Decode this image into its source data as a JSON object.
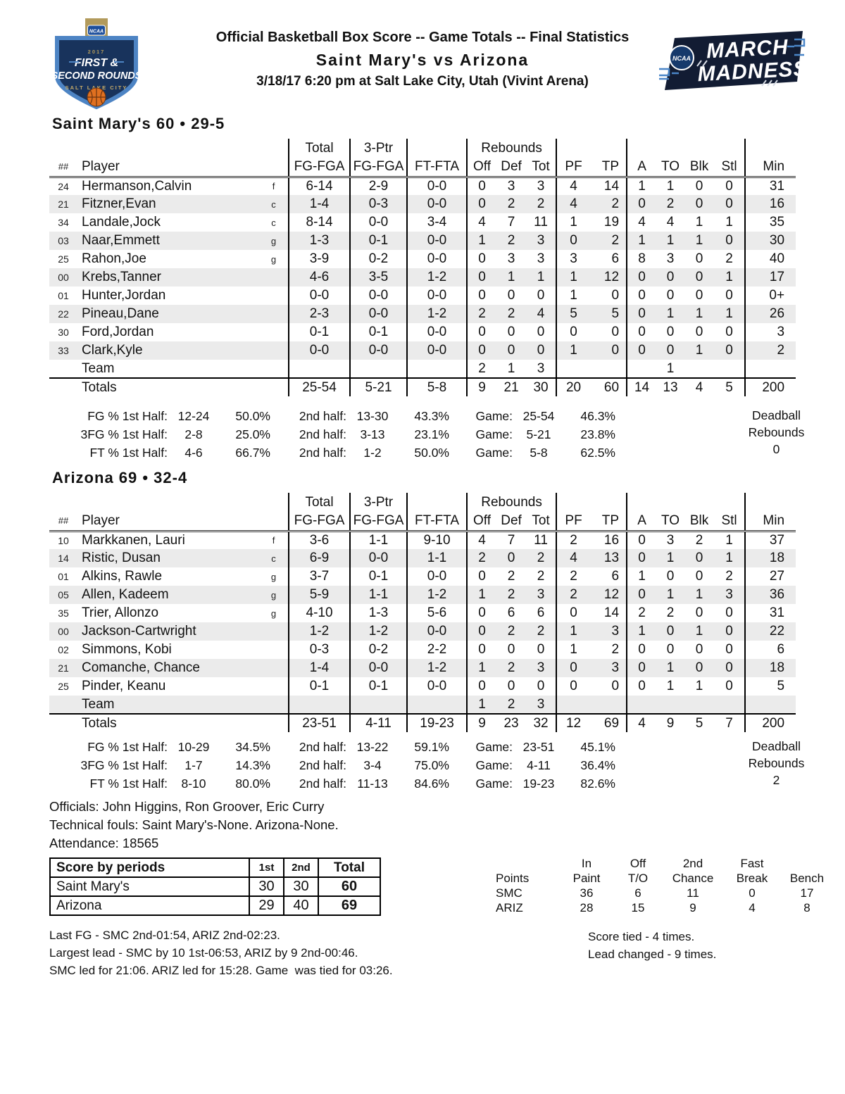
{
  "header": {
    "title_line1": "Official Basketball Box Score -- Game Totals -- Final Statistics",
    "title_line2": "Saint Mary's vs Arizona",
    "title_line3": "3/18/17 6:20 pm at Salt Lake City, Utah (Vivint Arena)",
    "left_logo": {
      "ncaa": "NCAA",
      "year": "2017",
      "line1": "FIRST &",
      "line2": "SECOND ROUNDS",
      "city": "SALT LAKE CITY",
      "colors": {
        "navy": "#18335c",
        "light_blue": "#4d84c4",
        "gold": "#b29a5b",
        "ball": "#e07020"
      }
    },
    "right_logo": {
      "ncaa": "NCAA",
      "line1": "MARCH",
      "line2": "MADNESS",
      "colors": {
        "bg": "#121c33",
        "bracket": "#4a86c8",
        "disk": "#16396b"
      }
    }
  },
  "table_head": {
    "group_total": "Total",
    "group_3ptr": "3-Ptr",
    "group_rebounds": "Rebounds",
    "cols": {
      "num": "##",
      "player": "Player",
      "fg": "FG-FGA",
      "fg3": "FG-FGA",
      "ft": "FT-FTA",
      "off": "Off",
      "def": "Def",
      "tot": "Tot",
      "pf": "PF",
      "tp": "TP",
      "a": "A",
      "to": "TO",
      "blk": "Blk",
      "stl": "Stl",
      "min": "Min"
    },
    "team_label": "Team",
    "totals_label": "Totals"
  },
  "teams": [
    {
      "title": "Saint Mary's 60 • 29-5",
      "players": [
        {
          "no": "24",
          "name": "Hermanson,Calvin",
          "pos": "f",
          "fg": "6-14",
          "fg3": "2-9",
          "ft": "0-0",
          "off": "0",
          "def": "3",
          "tot": "3",
          "pf": "4",
          "tp": "14",
          "a": "1",
          "to": "1",
          "blk": "0",
          "stl": "0",
          "min": "31"
        },
        {
          "no": "21",
          "name": "Fitzner,Evan",
          "pos": "c",
          "fg": "1-4",
          "fg3": "0-3",
          "ft": "0-0",
          "off": "0",
          "def": "2",
          "tot": "2",
          "pf": "4",
          "tp": "2",
          "a": "0",
          "to": "2",
          "blk": "0",
          "stl": "0",
          "min": "16"
        },
        {
          "no": "34",
          "name": "Landale,Jock",
          "pos": "c",
          "fg": "8-14",
          "fg3": "0-0",
          "ft": "3-4",
          "off": "4",
          "def": "7",
          "tot": "11",
          "pf": "1",
          "tp": "19",
          "a": "4",
          "to": "4",
          "blk": "1",
          "stl": "1",
          "min": "35"
        },
        {
          "no": "03",
          "name": "Naar,Emmett",
          "pos": "g",
          "fg": "1-3",
          "fg3": "0-1",
          "ft": "0-0",
          "off": "1",
          "def": "2",
          "tot": "3",
          "pf": "0",
          "tp": "2",
          "a": "1",
          "to": "1",
          "blk": "1",
          "stl": "0",
          "min": "30"
        },
        {
          "no": "25",
          "name": "Rahon,Joe",
          "pos": "g",
          "fg": "3-9",
          "fg3": "0-2",
          "ft": "0-0",
          "off": "0",
          "def": "3",
          "tot": "3",
          "pf": "3",
          "tp": "6",
          "a": "8",
          "to": "3",
          "blk": "0",
          "stl": "2",
          "min": "40"
        },
        {
          "no": "00",
          "name": "Krebs,Tanner",
          "pos": "",
          "fg": "4-6",
          "fg3": "3-5",
          "ft": "1-2",
          "off": "0",
          "def": "1",
          "tot": "1",
          "pf": "1",
          "tp": "12",
          "a": "0",
          "to": "0",
          "blk": "0",
          "stl": "1",
          "min": "17"
        },
        {
          "no": "01",
          "name": "Hunter,Jordan",
          "pos": "",
          "fg": "0-0",
          "fg3": "0-0",
          "ft": "0-0",
          "off": "0",
          "def": "0",
          "tot": "0",
          "pf": "1",
          "tp": "0",
          "a": "0",
          "to": "0",
          "blk": "0",
          "stl": "0",
          "min": "0+"
        },
        {
          "no": "22",
          "name": "Pineau,Dane",
          "pos": "",
          "fg": "2-3",
          "fg3": "0-0",
          "ft": "1-2",
          "off": "2",
          "def": "2",
          "tot": "4",
          "pf": "5",
          "tp": "5",
          "a": "0",
          "to": "1",
          "blk": "1",
          "stl": "1",
          "min": "26"
        },
        {
          "no": "30",
          "name": "Ford,Jordan",
          "pos": "",
          "fg": "0-1",
          "fg3": "0-1",
          "ft": "0-0",
          "off": "0",
          "def": "0",
          "tot": "0",
          "pf": "0",
          "tp": "0",
          "a": "0",
          "to": "0",
          "blk": "0",
          "stl": "0",
          "min": "3"
        },
        {
          "no": "33",
          "name": "Clark,Kyle",
          "pos": "",
          "fg": "0-0",
          "fg3": "0-0",
          "ft": "0-0",
          "off": "0",
          "def": "0",
          "tot": "0",
          "pf": "1",
          "tp": "0",
          "a": "0",
          "to": "0",
          "blk": "1",
          "stl": "0",
          "min": "2"
        }
      ],
      "team_row": {
        "off": "2",
        "def": "1",
        "tot": "3",
        "to": "1"
      },
      "totals": {
        "fg": "25-54",
        "fg3": "5-21",
        "ft": "5-8",
        "off": "9",
        "def": "21",
        "tot": "30",
        "pf": "20",
        "tp": "60",
        "a": "14",
        "to": "13",
        "blk": "4",
        "stl": "5",
        "min": "200"
      },
      "shooting": [
        {
          "label": "FG % 1st Half:",
          "v1": "12-24",
          "p1": "50.0%",
          "l2": "2nd half:",
          "v2": "13-30",
          "p2": "43.3%",
          "l3": "Game:",
          "v3": "25-54",
          "p3": "46.3%"
        },
        {
          "label": "3FG % 1st Half:",
          "v1": "2-8",
          "p1": "25.0%",
          "l2": "2nd half:",
          "v2": "3-13",
          "p2": "23.1%",
          "l3": "Game:",
          "v3": "5-21",
          "p3": "23.8%"
        },
        {
          "label": "FT % 1st Half:",
          "v1": "4-6",
          "p1": "66.7%",
          "l2": "2nd half:",
          "v2": "1-2",
          "p2": "50.0%",
          "l3": "Game:",
          "v3": "5-8",
          "p3": "62.5%"
        }
      ],
      "deadball": {
        "line1": "Deadball",
        "line2": "Rebounds",
        "value": "0"
      }
    },
    {
      "title": "Arizona 69 • 32-4",
      "players": [
        {
          "no": "10",
          "name": "Markkanen, Lauri",
          "pos": "f",
          "fg": "3-6",
          "fg3": "1-1",
          "ft": "9-10",
          "off": "4",
          "def": "7",
          "tot": "11",
          "pf": "2",
          "tp": "16",
          "a": "0",
          "to": "3",
          "blk": "2",
          "stl": "1",
          "min": "37"
        },
        {
          "no": "14",
          "name": "Ristic, Dusan",
          "pos": "c",
          "fg": "6-9",
          "fg3": "0-0",
          "ft": "1-1",
          "off": "2",
          "def": "0",
          "tot": "2",
          "pf": "4",
          "tp": "13",
          "a": "0",
          "to": "1",
          "blk": "0",
          "stl": "1",
          "min": "18"
        },
        {
          "no": "01",
          "name": "Alkins, Rawle",
          "pos": "g",
          "fg": "3-7",
          "fg3": "0-1",
          "ft": "0-0",
          "off": "0",
          "def": "2",
          "tot": "2",
          "pf": "2",
          "tp": "6",
          "a": "1",
          "to": "0",
          "blk": "0",
          "stl": "2",
          "min": "27"
        },
        {
          "no": "05",
          "name": "Allen, Kadeem",
          "pos": "g",
          "fg": "5-9",
          "fg3": "1-1",
          "ft": "1-2",
          "off": "1",
          "def": "2",
          "tot": "3",
          "pf": "2",
          "tp": "12",
          "a": "0",
          "to": "1",
          "blk": "1",
          "stl": "3",
          "min": "36"
        },
        {
          "no": "35",
          "name": "Trier, Allonzo",
          "pos": "g",
          "fg": "4-10",
          "fg3": "1-3",
          "ft": "5-6",
          "off": "0",
          "def": "6",
          "tot": "6",
          "pf": "0",
          "tp": "14",
          "a": "2",
          "to": "2",
          "blk": "0",
          "stl": "0",
          "min": "31"
        },
        {
          "no": "00",
          "name": "Jackson-Cartwright",
          "pos": "",
          "fg": "1-2",
          "fg3": "1-2",
          "ft": "0-0",
          "off": "0",
          "def": "2",
          "tot": "2",
          "pf": "1",
          "tp": "3",
          "a": "1",
          "to": "0",
          "blk": "1",
          "stl": "0",
          "min": "22"
        },
        {
          "no": "02",
          "name": "Simmons, Kobi",
          "pos": "",
          "fg": "0-3",
          "fg3": "0-2",
          "ft": "2-2",
          "off": "0",
          "def": "0",
          "tot": "0",
          "pf": "1",
          "tp": "2",
          "a": "0",
          "to": "0",
          "blk": "0",
          "stl": "0",
          "min": "6"
        },
        {
          "no": "21",
          "name": "Comanche, Chance",
          "pos": "",
          "fg": "1-4",
          "fg3": "0-0",
          "ft": "1-2",
          "off": "1",
          "def": "2",
          "tot": "3",
          "pf": "0",
          "tp": "3",
          "a": "0",
          "to": "1",
          "blk": "0",
          "stl": "0",
          "min": "18"
        },
        {
          "no": "25",
          "name": "Pinder, Keanu",
          "pos": "",
          "fg": "0-1",
          "fg3": "0-1",
          "ft": "0-0",
          "off": "0",
          "def": "0",
          "tot": "0",
          "pf": "0",
          "tp": "0",
          "a": "0",
          "to": "1",
          "blk": "1",
          "stl": "0",
          "min": "5"
        }
      ],
      "team_row": {
        "off": "1",
        "def": "2",
        "tot": "3",
        "to": ""
      },
      "totals": {
        "fg": "23-51",
        "fg3": "4-11",
        "ft": "19-23",
        "off": "9",
        "def": "23",
        "tot": "32",
        "pf": "12",
        "tp": "69",
        "a": "4",
        "to": "9",
        "blk": "5",
        "stl": "7",
        "min": "200"
      },
      "shooting": [
        {
          "label": "FG % 1st Half:",
          "v1": "10-29",
          "p1": "34.5%",
          "l2": "2nd half:",
          "v2": "13-22",
          "p2": "59.1%",
          "l3": "Game:",
          "v3": "23-51",
          "p3": "45.1%"
        },
        {
          "label": "3FG % 1st Half:",
          "v1": "1-7",
          "p1": "14.3%",
          "l2": "2nd half:",
          "v2": "3-4",
          "p2": "75.0%",
          "l3": "Game:",
          "v3": "4-11",
          "p3": "36.4%"
        },
        {
          "label": "FT % 1st Half:",
          "v1": "8-10",
          "p1": "80.0%",
          "l2": "2nd half:",
          "v2": "11-13",
          "p2": "84.6%",
          "l3": "Game:",
          "v3": "19-23",
          "p3": "82.6%"
        }
      ],
      "deadball": {
        "line1": "Deadball",
        "line2": "Rebounds",
        "value": "2"
      }
    }
  ],
  "footer": {
    "officials": "Officials: John Higgins, Ron Groover, Eric Curry",
    "technical_fouls": "Technical fouls: Saint Mary's-None. Arizona-None.",
    "attendance": "Attendance: 18565",
    "score_by_periods": {
      "header": {
        "label": "Score by periods",
        "p1": "1st",
        "p2": "2nd",
        "total": "Total"
      },
      "rows": [
        {
          "team": "Saint Mary's",
          "p1": "30",
          "p2": "30",
          "total": "60"
        },
        {
          "team": "Arizona",
          "p1": "29",
          "p2": "40",
          "total": "69"
        }
      ]
    },
    "points_summary": {
      "header_top": [
        "",
        "In",
        "Off",
        "2nd",
        "Fast",
        ""
      ],
      "header_bottom": [
        "Points",
        "Paint",
        "T/O",
        "Chance",
        "Break",
        "Bench"
      ],
      "rows": [
        {
          "team": "SMC",
          "values": [
            "36",
            "6",
            "11",
            "0",
            "17"
          ]
        },
        {
          "team": "ARIZ",
          "values": [
            "28",
            "15",
            "9",
            "4",
            "8"
          ]
        }
      ]
    },
    "game_notes": [
      "Last FG - SMC 2nd-01:54, ARIZ 2nd-02:23.",
      "Largest lead - SMC by 10 1st-06:53, ARIZ by 9 2nd-00:46.",
      "SMC led for 21:06. ARIZ led for 15:28. Game  was tied for 03:26."
    ],
    "lead_notes": [
      "Score tied - 4 times.",
      "Lead changed - 9 times."
    ]
  }
}
